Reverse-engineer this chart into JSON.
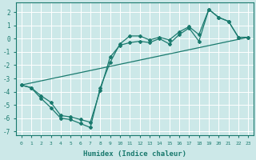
{
  "xlabel": "Humidex (Indice chaleur)",
  "ylabel": "",
  "background_color": "#cce8e8",
  "grid_color": "#ffffff",
  "line_color": "#1a7a6e",
  "xlim": [
    -0.5,
    23.5
  ],
  "ylim": [
    -7.3,
    2.7
  ],
  "yticks": [
    -7,
    -6,
    -5,
    -4,
    -3,
    -2,
    -1,
    0,
    1,
    2
  ],
  "xticks": [
    0,
    1,
    2,
    3,
    4,
    5,
    6,
    7,
    8,
    9,
    10,
    11,
    12,
    13,
    14,
    15,
    16,
    17,
    18,
    19,
    20,
    21,
    22,
    23
  ],
  "series1_x": [
    0,
    1,
    2,
    3,
    4,
    5,
    6,
    7,
    8,
    9,
    10,
    11,
    12,
    13,
    14,
    15,
    16,
    17,
    18,
    19,
    20,
    21,
    22,
    23
  ],
  "series1_y": [
    -3.5,
    -3.7,
    -4.5,
    -5.2,
    -6.0,
    -6.1,
    -6.4,
    -6.7,
    -3.7,
    -1.8,
    -0.4,
    0.2,
    0.2,
    -0.1,
    0.1,
    -0.1,
    0.5,
    0.9,
    0.3,
    2.2,
    1.6,
    1.3,
    0.1,
    0.1
  ],
  "series2_x": [
    0,
    1,
    2,
    3,
    4,
    5,
    6,
    7,
    8,
    9,
    10,
    11,
    12,
    13,
    14,
    15,
    16,
    17,
    18,
    19,
    20,
    21,
    22,
    23
  ],
  "series2_y": [
    -3.5,
    -3.7,
    -4.3,
    -4.8,
    -5.8,
    -5.9,
    -6.1,
    -6.3,
    -3.9,
    -1.4,
    -0.5,
    -0.3,
    -0.2,
    -0.3,
    0.0,
    -0.4,
    0.3,
    0.8,
    -0.2,
    2.2,
    1.6,
    1.3,
    0.1,
    0.1
  ],
  "series3_x": [
    0,
    23
  ],
  "series3_y": [
    -3.5,
    0.1
  ]
}
